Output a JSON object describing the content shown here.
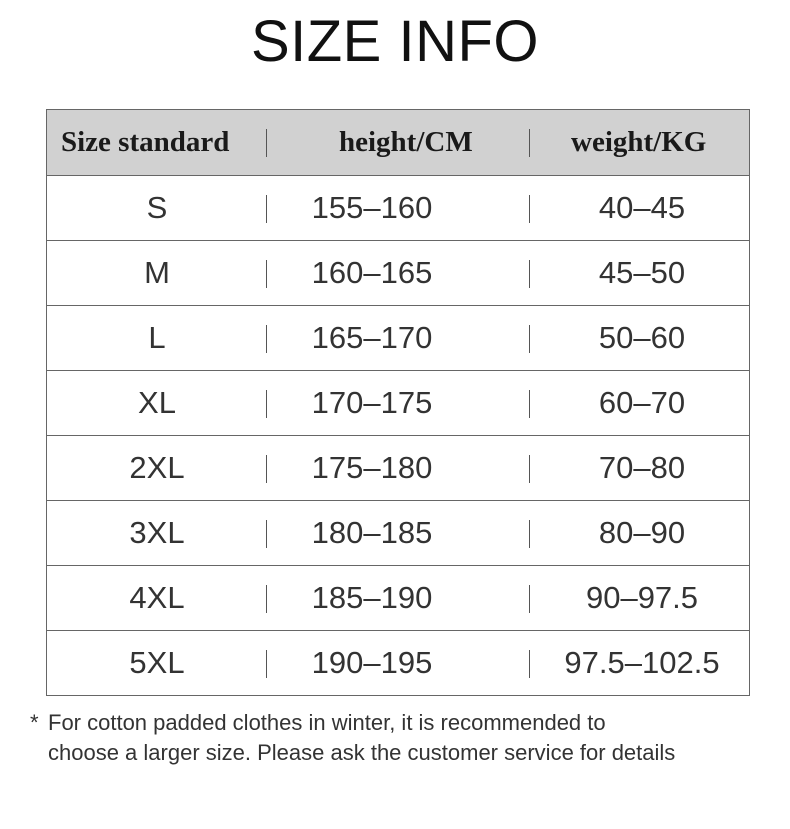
{
  "title": "SIZE INFO",
  "table": {
    "headers": [
      "Size standard",
      "height/CM",
      "weight/KG"
    ],
    "rows": [
      [
        "S",
        "155–160",
        "40–45"
      ],
      [
        "M",
        "160–165",
        "45–50"
      ],
      [
        "L",
        "165–170",
        "50–60"
      ],
      [
        "XL",
        "170–175",
        "60–70"
      ],
      [
        "2XL",
        "175–180",
        "70–80"
      ],
      [
        "3XL",
        "180–185",
        "80–90"
      ],
      [
        "4XL",
        "185–190",
        "90–97.5"
      ],
      [
        "5XL",
        "190–195",
        "97.5–102.5"
      ]
    ],
    "colors": {
      "header_bg": "#d1d1d1",
      "border": "#666666"
    }
  },
  "note": {
    "star": "*",
    "line1": "For cotton padded clothes in winter, it is recommended to",
    "line2": "choose a larger size. Please ask the customer service for details"
  }
}
